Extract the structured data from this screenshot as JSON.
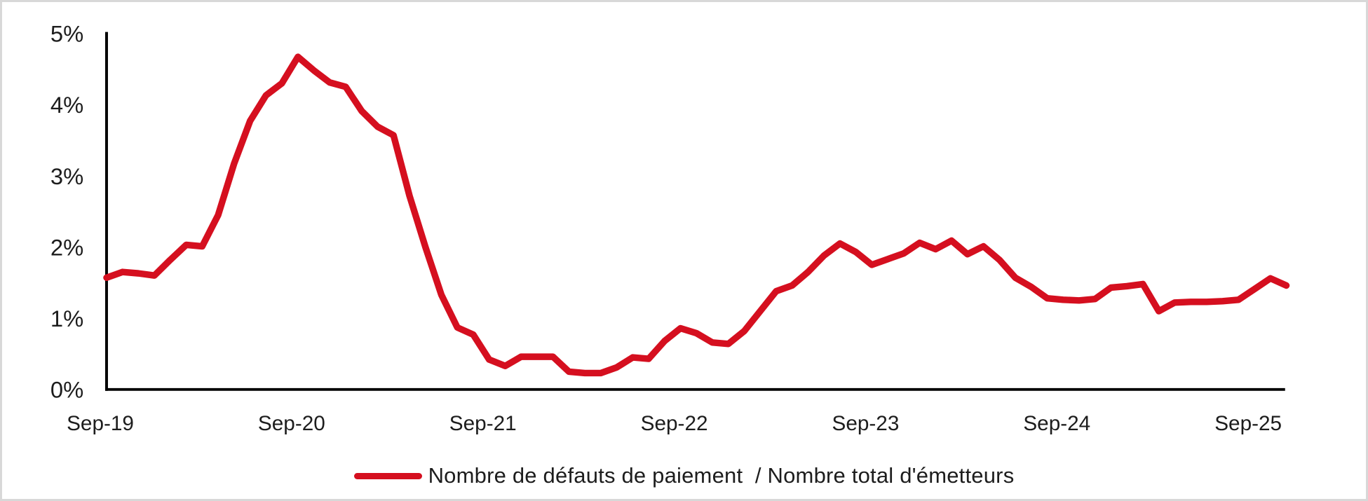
{
  "legend": {
    "label": "Nombre de défauts de paiement  / Nombre total d'émetteurs"
  },
  "colors": {
    "line": "#d50f1f",
    "axis": "#000000",
    "text": "#1d1d1d",
    "frame": "#d8d8d8",
    "background": "#ffffff"
  },
  "chart_data": {
    "type": "line",
    "title": "",
    "xlabel": "",
    "ylabel": "",
    "unit": "percent",
    "ylim": [
      0,
      5
    ],
    "grid": false,
    "legend_position": "bottom-center",
    "frequency": "monthly",
    "y_tick_labels": [
      "0%",
      "1%",
      "2%",
      "3%",
      "4%",
      "5%"
    ],
    "x_tick_labels": [
      "Sep-19",
      "Sep-20",
      "Sep-21",
      "Sep-22",
      "Sep-23",
      "Sep-24",
      "Sep-25"
    ],
    "x_tick_point_indices": [
      0,
      12,
      24,
      36,
      48,
      60,
      72
    ],
    "series": [
      {
        "name": "Nombre de défauts de paiement / Nombre total d'émetteurs",
        "color": "#d50f1f",
        "start_point_label": "Sep-19",
        "values_percent": [
          1.57,
          1.65,
          1.63,
          1.6,
          1.82,
          2.03,
          2.01,
          2.45,
          3.17,
          3.77,
          4.13,
          4.3,
          4.67,
          4.48,
          4.31,
          4.25,
          3.91,
          3.69,
          3.57,
          2.72,
          2.0,
          1.33,
          0.87,
          0.77,
          0.42,
          0.33,
          0.46,
          0.46,
          0.46,
          0.25,
          0.23,
          0.23,
          0.31,
          0.45,
          0.43,
          0.68,
          0.86,
          0.79,
          0.66,
          0.64,
          0.82,
          1.1,
          1.38,
          1.46,
          1.65,
          1.88,
          2.05,
          1.93,
          1.75,
          1.83,
          1.91,
          2.06,
          1.97,
          2.09,
          1.9,
          2.01,
          1.82,
          1.57,
          1.44,
          1.28,
          1.26,
          1.25,
          1.27,
          1.43,
          1.45,
          1.48,
          1.1,
          1.22,
          1.23,
          1.23,
          1.24,
          1.26,
          1.41,
          1.56,
          1.46
        ]
      }
    ]
  }
}
